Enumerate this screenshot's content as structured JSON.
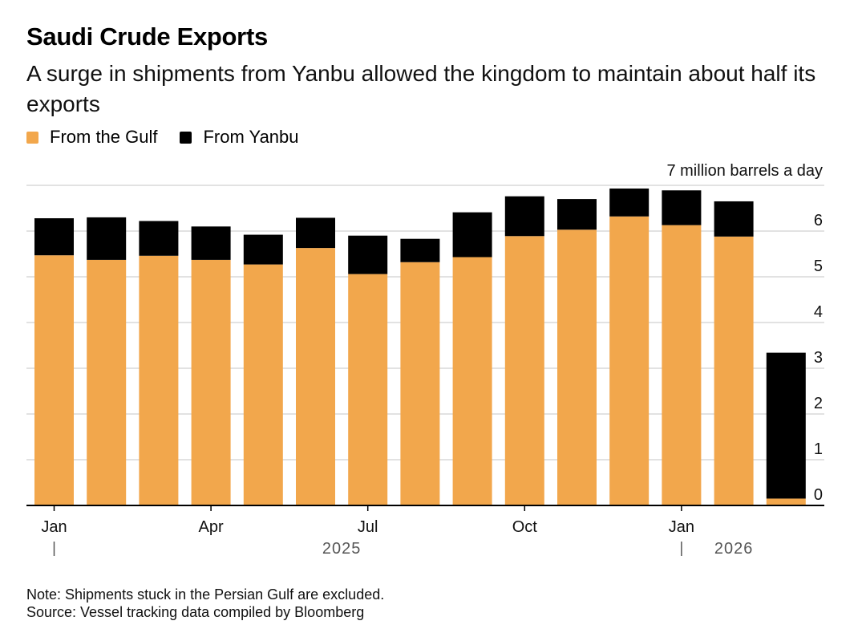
{
  "title": "Saudi Crude Exports",
  "subtitle": "A surge in shipments from Yanbu allowed the kingdom to maintain about half its exports",
  "legend": [
    {
      "label": "From the Gulf",
      "color": "#F2A74C"
    },
    {
      "label": "From Yanbu",
      "color": "#000000"
    }
  ],
  "note": "Note: Shipments stuck in the Persian Gulf are excluded.",
  "source": "Source: Vessel tracking data compiled by Bloomberg",
  "chart_data": {
    "type": "bar",
    "stacked": true,
    "unit_label": "7 million barrels a day",
    "ylim": [
      0,
      7
    ],
    "yticks": [
      0,
      1,
      2,
      3,
      4,
      5,
      6
    ],
    "grid": true,
    "categories": [
      "Jan 2025",
      "Feb 2025",
      "Mar 2025",
      "Apr 2025",
      "May 2025",
      "Jun 2025",
      "Jul 2025",
      "Aug 2025",
      "Sep 2025",
      "Oct 2025",
      "Nov 2025",
      "Dec 2025",
      "Jan 2026",
      "Feb 2026",
      "Mar 2026"
    ],
    "series": [
      {
        "name": "From the Gulf",
        "color": "#F2A74C",
        "values": [
          5.47,
          5.37,
          5.46,
          5.37,
          5.27,
          5.63,
          5.06,
          5.32,
          5.43,
          5.89,
          6.03,
          6.32,
          6.13,
          5.88,
          0.15
        ]
      },
      {
        "name": "From Yanbu",
        "color": "#000000",
        "values": [
          0.81,
          0.93,
          0.76,
          0.73,
          0.65,
          0.66,
          0.84,
          0.51,
          0.98,
          0.87,
          0.67,
          0.61,
          0.76,
          0.77,
          3.19
        ]
      }
    ],
    "x_tick_labels": [
      {
        "index": 0,
        "label": "Jan"
      },
      {
        "index": 3,
        "label": "Apr"
      },
      {
        "index": 6,
        "label": "Jul"
      },
      {
        "index": 9,
        "label": "Oct"
      },
      {
        "index": 12,
        "label": "Jan"
      }
    ],
    "year_labels": [
      {
        "label": "2025",
        "start": 0,
        "end": 11
      },
      {
        "label": "2026",
        "start": 12,
        "end": 14
      }
    ]
  }
}
